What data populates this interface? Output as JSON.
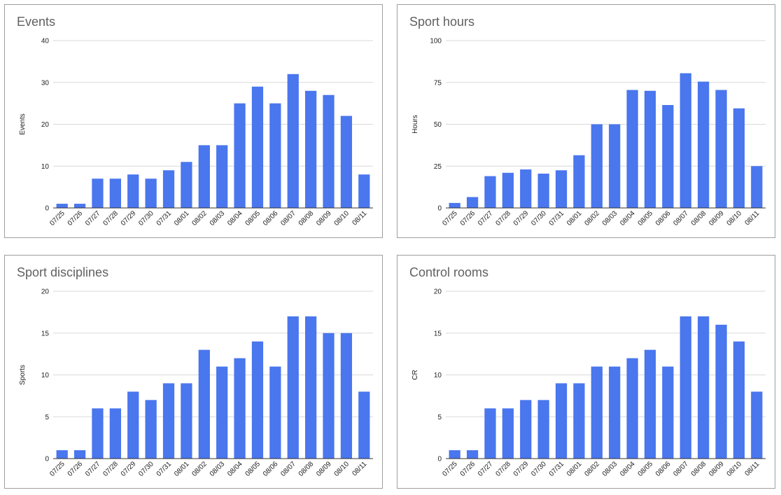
{
  "colors": {
    "bar": "#4a76ee",
    "grid": "#d9d9d9",
    "axis": "#333333"
  },
  "chart_data": [
    {
      "type": "bar",
      "title": "Events",
      "ylabel": "Events",
      "ylim": [
        0,
        40
      ],
      "yticks": [
        0,
        10,
        20,
        30,
        40
      ],
      "grid": true,
      "categories": [
        "07/25",
        "07/26",
        "07/27",
        "07/28",
        "07/29",
        "07/30",
        "07/31",
        "08/01",
        "08/02",
        "08/03",
        "08/04",
        "08/05",
        "08/06",
        "08/07",
        "08/08",
        "08/09",
        "08/10",
        "08/11"
      ],
      "values": [
        1,
        1,
        7,
        7,
        8,
        7,
        9,
        11,
        15,
        15,
        25,
        29,
        25,
        32,
        28,
        27,
        22,
        8
      ]
    },
    {
      "type": "bar",
      "title": "Sport hours",
      "ylabel": "Hours",
      "ylim": [
        0,
        100
      ],
      "yticks": [
        0,
        25,
        50,
        75,
        100
      ],
      "grid": true,
      "categories": [
        "07/25",
        "07/26",
        "07/27",
        "07/28",
        "07/29",
        "07/30",
        "07/31",
        "08/01",
        "08/02",
        "08/03",
        "08/04",
        "08/05",
        "08/06",
        "08/07",
        "08/08",
        "08/09",
        "08/10",
        "08/11"
      ],
      "values": [
        3,
        6.5,
        19,
        21,
        23,
        20.5,
        22.5,
        31.5,
        50,
        50,
        70.5,
        70,
        61.5,
        80.5,
        75.5,
        70.5,
        59.5,
        25
      ]
    },
    {
      "type": "bar",
      "title": "Sport disciplines",
      "ylabel": "Sports",
      "ylim": [
        0,
        20
      ],
      "yticks": [
        0,
        5,
        10,
        15,
        20
      ],
      "grid": true,
      "categories": [
        "07/25",
        "07/26",
        "07/27",
        "07/28",
        "07/29",
        "07/30",
        "07/31",
        "08/01",
        "08/02",
        "08/03",
        "08/04",
        "08/05",
        "08/06",
        "08/07",
        "08/08",
        "08/09",
        "08/10",
        "08/11"
      ],
      "values": [
        1,
        1,
        6,
        6,
        8,
        7,
        9,
        9,
        13,
        11,
        12,
        14,
        11,
        17,
        17,
        15,
        15,
        8
      ]
    },
    {
      "type": "bar",
      "title": "Control rooms",
      "ylabel": "CR",
      "ylim": [
        0,
        20
      ],
      "yticks": [
        0,
        5,
        10,
        15,
        20
      ],
      "grid": true,
      "categories": [
        "07/25",
        "07/26",
        "07/27",
        "07/28",
        "07/29",
        "07/30",
        "07/31",
        "08/01",
        "08/02",
        "08/03",
        "08/04",
        "08/05",
        "08/06",
        "08/07",
        "08/08",
        "08/09",
        "08/10",
        "08/11"
      ],
      "values": [
        1,
        1,
        6,
        6,
        7,
        7,
        9,
        9,
        11,
        11,
        12,
        13,
        11,
        17,
        17,
        16,
        14,
        8
      ]
    }
  ]
}
